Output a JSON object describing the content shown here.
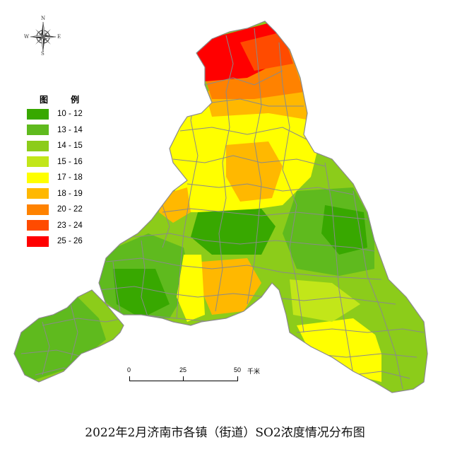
{
  "title": "2022年2月济南市各镇（街道）SO2浓度情况分布图",
  "compass": {
    "north": "N",
    "south": "S",
    "east": "E",
    "west": "W"
  },
  "legend": {
    "title": "图  例",
    "classes": [
      {
        "label": "10 - 12",
        "color": "#38a800"
      },
      {
        "label": "13 - 14",
        "color": "#5fba1e"
      },
      {
        "label": "14 - 15",
        "color": "#8ccc1a"
      },
      {
        "label": "15 - 16",
        "color": "#c2e619"
      },
      {
        "label": "17 - 18",
        "color": "#ffff00"
      },
      {
        "label": "18 - 19",
        "color": "#ffb800"
      },
      {
        "label": "20 - 22",
        "color": "#ff8200"
      },
      {
        "label": "23 - 24",
        "color": "#ff4b00"
      },
      {
        "label": "25 - 26",
        "color": "#ff0000"
      }
    ]
  },
  "scalebar": {
    "ticks": [
      "0",
      "25",
      "50"
    ],
    "unit": "千米"
  }
}
